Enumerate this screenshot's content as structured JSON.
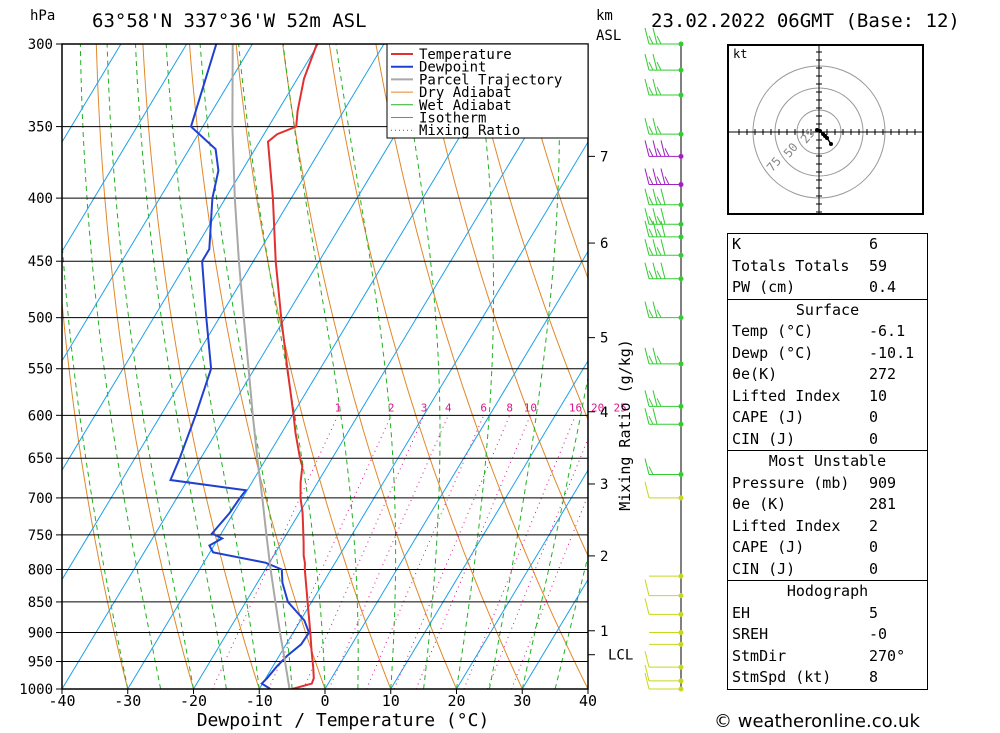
{
  "header": {
    "location": "63°58'N  337°36'W  52m  ASL",
    "datetime": "23.02.2022  06GMT  (Base: 12)",
    "p_unit": "hPa",
    "km_unit": "km",
    "asl_unit": "ASL"
  },
  "chart_data": {
    "type": "skew-t log-p",
    "xlabel": "Dewpoint / Temperature (°C)",
    "x_ticks": [
      -40,
      -30,
      -20,
      -10,
      0,
      10,
      20,
      30,
      40
    ],
    "y_ticks_hpa": [
      300,
      350,
      400,
      450,
      500,
      550,
      600,
      650,
      700,
      750,
      800,
      850,
      900,
      950,
      1000
    ],
    "yscale": "log",
    "km_ticks": [
      {
        "km": "1",
        "p": 897
      },
      {
        "km": "2",
        "p": 780
      },
      {
        "km": "3",
        "p": 682
      },
      {
        "km": "4",
        "p": 596
      },
      {
        "km": "5",
        "p": 519
      },
      {
        "km": "6",
        "p": 435
      },
      {
        "km": "7",
        "p": 370
      }
    ],
    "lcl": {
      "label": "LCL",
      "p": 938
    },
    "mixing_ratio_label": "Mixing Ratio (g/kg)",
    "mixing_ratios": [
      1,
      2,
      3,
      4,
      6,
      8,
      10,
      16,
      20,
      25
    ],
    "legend": [
      "Temperature",
      "Dewpoint",
      "Parcel Trajectory",
      "Dry Adiabat",
      "Wet Adiabat",
      "Isotherm",
      "Mixing Ratio"
    ],
    "series": [
      {
        "name": "Temperature",
        "color": "#e03030",
        "points": [
          [
            1000,
            -5
          ],
          [
            990,
            -2.5
          ],
          [
            980,
            -2.7
          ],
          [
            960,
            -3.8
          ],
          [
            930,
            -5.6
          ],
          [
            900,
            -7.4
          ],
          [
            850,
            -10.6
          ],
          [
            800,
            -14.0
          ],
          [
            790,
            -14.6
          ],
          [
            780,
            -15.4
          ],
          [
            760,
            -16.7
          ],
          [
            720,
            -19.5
          ],
          [
            700,
            -21.2
          ],
          [
            680,
            -22.6
          ],
          [
            660,
            -23.8
          ],
          [
            650,
            -24.9
          ],
          [
            620,
            -27.9
          ],
          [
            600,
            -29.8
          ],
          [
            550,
            -35.0
          ],
          [
            500,
            -40.6
          ],
          [
            450,
            -46.6
          ],
          [
            400,
            -52.8
          ],
          [
            360,
            -58.7
          ],
          [
            355,
            -58.0
          ],
          [
            350,
            -55.8
          ],
          [
            340,
            -57.0
          ],
          [
            320,
            -59.0
          ],
          [
            300,
            -60.2
          ]
        ]
      },
      {
        "name": "Dewpoint",
        "color": "#2040d0",
        "points": [
          [
            1000,
            -8.3
          ],
          [
            990,
            -10.1
          ],
          [
            980,
            -9.8
          ],
          [
            960,
            -9.4
          ],
          [
            940,
            -8.8
          ],
          [
            920,
            -7.7
          ],
          [
            900,
            -7.6
          ],
          [
            880,
            -9.4
          ],
          [
            850,
            -13.6
          ],
          [
            820,
            -16.2
          ],
          [
            800,
            -17.5
          ],
          [
            790,
            -20.6
          ],
          [
            775,
            -29.5
          ],
          [
            765,
            -30.7
          ],
          [
            755,
            -29.4
          ],
          [
            748,
            -31.4
          ],
          [
            720,
            -30.6
          ],
          [
            700,
            -30.4
          ],
          [
            690,
            -30.2
          ],
          [
            677,
            -42.6
          ],
          [
            650,
            -43.2
          ],
          [
            600,
            -44.7
          ],
          [
            550,
            -46.6
          ],
          [
            500,
            -52.0
          ],
          [
            450,
            -57.8
          ],
          [
            440,
            -57.8
          ],
          [
            400,
            -62.0
          ],
          [
            380,
            -63.6
          ],
          [
            365,
            -66.0
          ],
          [
            350,
            -71.8
          ],
          [
            300,
            -75.5
          ]
        ]
      },
      {
        "name": "Parcel Trajectory",
        "color": "#a8a8a8",
        "points": [
          [
            1000,
            -5.4
          ],
          [
            950,
            -8.6
          ],
          [
            938,
            -9.4
          ],
          [
            900,
            -12.0
          ],
          [
            850,
            -15.5
          ],
          [
            800,
            -19.2
          ],
          [
            750,
            -23.0
          ],
          [
            700,
            -27.0
          ],
          [
            650,
            -31.4
          ],
          [
            600,
            -36.0
          ],
          [
            550,
            -40.9
          ],
          [
            500,
            -46.3
          ],
          [
            450,
            -52.2
          ],
          [
            400,
            -58.6
          ],
          [
            350,
            -65.5
          ],
          [
            300,
            -73.0
          ]
        ]
      }
    ],
    "wind_barbs": [
      {
        "p": 1000,
        "dir": 255,
        "kt": 5
      },
      {
        "p": 985,
        "dir": 260,
        "kt": 7
      },
      {
        "p": 960,
        "dir": 255,
        "kt": 6
      },
      {
        "p": 920,
        "dir": 290,
        "kt": 3
      },
      {
        "p": 900,
        "dir": 300,
        "kt": 4
      },
      {
        "p": 870,
        "dir": 320,
        "kt": 5
      },
      {
        "p": 840,
        "dir": 330,
        "kt": 5
      },
      {
        "p": 810,
        "dir": 330,
        "kt": 4
      },
      {
        "p": 700,
        "dir": 270,
        "kt": 8
      },
      {
        "p": 670,
        "dir": 250,
        "kt": 10
      },
      {
        "p": 610,
        "dir": 250,
        "kt": 15
      },
      {
        "p": 590,
        "dir": 250,
        "kt": 20
      },
      {
        "p": 545,
        "dir": 250,
        "kt": 20
      },
      {
        "p": 500,
        "dir": 250,
        "kt": 20
      },
      {
        "p": 465,
        "dir": 240,
        "kt": 25
      },
      {
        "p": 445,
        "dir": 240,
        "kt": 25
      },
      {
        "p": 430,
        "dir": 240,
        "kt": 25
      },
      {
        "p": 420,
        "dir": 240,
        "kt": 25
      },
      {
        "p": 405,
        "dir": 240,
        "kt": 25
      },
      {
        "p": 390,
        "dir": 250,
        "kt": 30
      },
      {
        "p": 370,
        "dir": 250,
        "kt": 30
      },
      {
        "p": 355,
        "dir": 250,
        "kt": 20
      },
      {
        "p": 330,
        "dir": 250,
        "kt": 20
      },
      {
        "p": 315,
        "dir": 255,
        "kt": 20
      },
      {
        "p": 300,
        "dir": 260,
        "kt": 20
      }
    ],
    "hodograph": {
      "unit": "kt",
      "ring_labels": [
        "25",
        "50",
        "75"
      ],
      "trace_kt": [
        [
          -1,
          1
        ],
        [
          0.5,
          0.5
        ],
        [
          2,
          -1
        ],
        [
          3,
          -2
        ],
        [
          4,
          -3
        ],
        [
          6,
          -6
        ]
      ]
    },
    "colors": {
      "temperature": "#e03030",
      "dewpoint": "#2040d0",
      "parcel": "#a8a8a8",
      "dry_adiabat": "#e0882a",
      "wet_adiabat": "#22b022",
      "isotherm": "#1ea0e8",
      "mixing_ratio": "#d8188a"
    }
  },
  "stats": {
    "general": [
      {
        "k": "K",
        "v": "6"
      },
      {
        "k": "Totals Totals",
        "v": "59"
      },
      {
        "k": "PW (cm)",
        "v": "0.4"
      }
    ],
    "surface": {
      "title": "Surface",
      "rows": [
        {
          "k": "Temp (°C)",
          "v": "-6.1"
        },
        {
          "k": "Dewp (°C)",
          "v": "-10.1"
        },
        {
          "k": "θe(K)",
          "v": "272"
        },
        {
          "k": "Lifted Index",
          "v": "10"
        },
        {
          "k": "CAPE (J)",
          "v": "0"
        },
        {
          "k": "CIN (J)",
          "v": "0"
        }
      ]
    },
    "most_unstable": {
      "title": "Most Unstable",
      "rows": [
        {
          "k": "Pressure (mb)",
          "v": "909"
        },
        {
          "k": "θe (K)",
          "v": "281"
        },
        {
          "k": "Lifted Index",
          "v": "2"
        },
        {
          "k": "CAPE (J)",
          "v": "0"
        },
        {
          "k": "CIN (J)",
          "v": "0"
        }
      ]
    },
    "hodograph": {
      "title": "Hodograph",
      "rows": [
        {
          "k": "EH",
          "v": "5"
        },
        {
          "k": "SREH",
          "v": "-0"
        },
        {
          "k": "StmDir",
          "v": "270°"
        },
        {
          "k": "StmSpd (kt)",
          "v": "8"
        }
      ]
    }
  },
  "footer": "© weatheronline.co.uk"
}
